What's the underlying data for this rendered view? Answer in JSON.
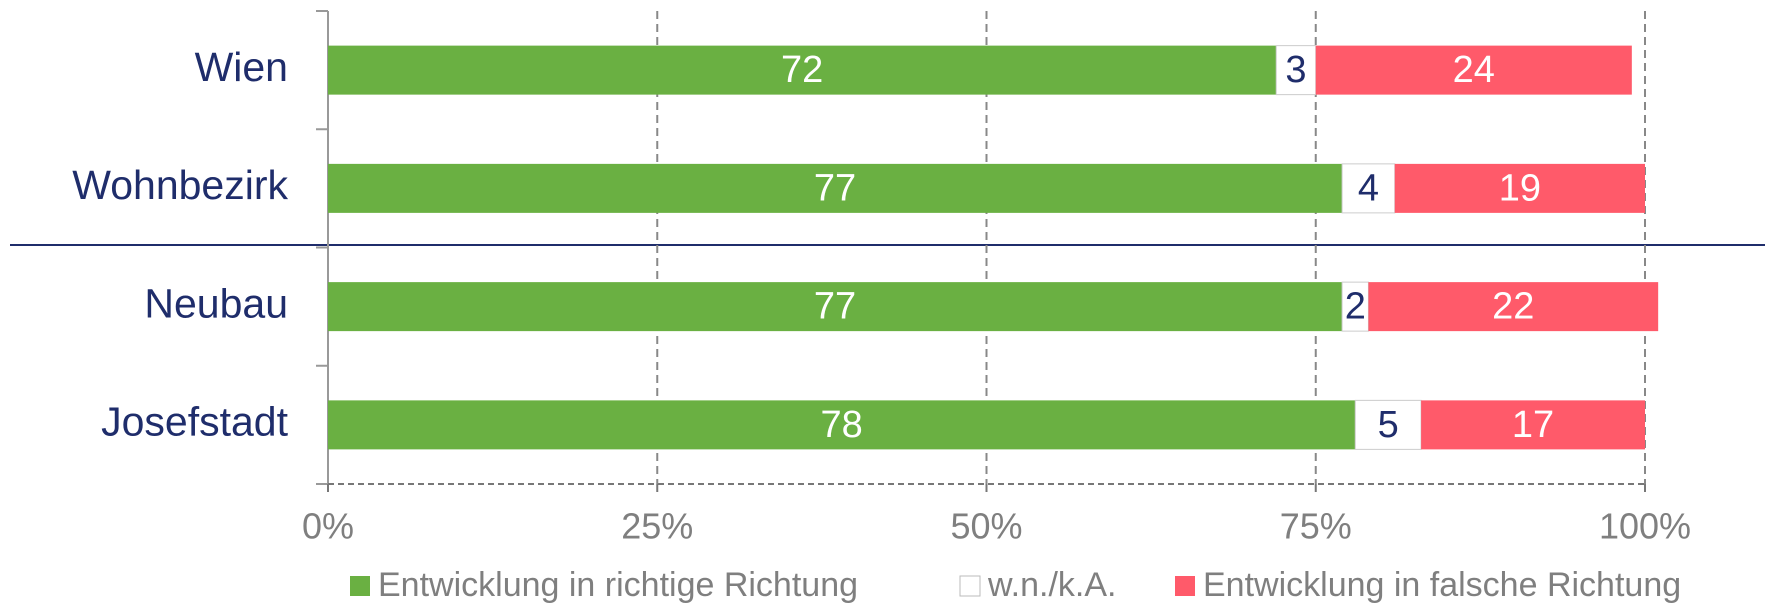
{
  "chart_data": {
    "type": "stacked-bar-horizontal",
    "categories": [
      "Wien",
      "Wohnbezirk",
      "Neubau",
      "Josefstadt"
    ],
    "series": [
      {
        "name": "Entwicklung in richtige Richtung",
        "color": "#6ab042",
        "values": [
          72,
          77,
          77,
          78
        ]
      },
      {
        "name": "w.n./k.A.",
        "color": "#ffffff",
        "values": [
          3,
          4,
          2,
          5
        ]
      },
      {
        "name": "Entwicklung in falsche Richtung",
        "color": "#ff5a6a",
        "values": [
          24,
          19,
          22,
          17
        ]
      }
    ],
    "xlim": [
      0,
      100
    ],
    "xticks": [
      {
        "value": 0,
        "label": "0%"
      },
      {
        "value": 25,
        "label": "25%"
      },
      {
        "value": 50,
        "label": "50%"
      },
      {
        "value": 75,
        "label": "75%"
      },
      {
        "value": 100,
        "label": "100%"
      }
    ],
    "grid": true,
    "legend": "bottom"
  }
}
